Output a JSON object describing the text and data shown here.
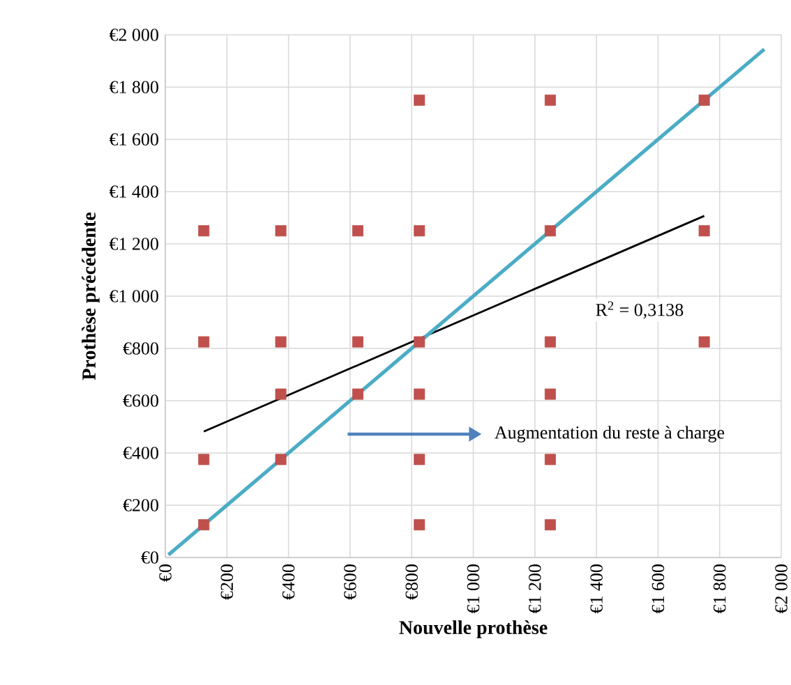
{
  "chart_data": {
    "type": "scatter",
    "xlabel": "Nouvelle prothèse",
    "ylabel": "Prothèse précédente",
    "xlim": [
      0,
      2000
    ],
    "ylim": [
      0,
      2000
    ],
    "xticks": [
      {
        "value": 0,
        "label": "€0"
      },
      {
        "value": 200,
        "label": "€200"
      },
      {
        "value": 400,
        "label": "€400"
      },
      {
        "value": 600,
        "label": "€600"
      },
      {
        "value": 800,
        "label": "€800"
      },
      {
        "value": 1000,
        "label": "€1 000"
      },
      {
        "value": 1200,
        "label": "€1 200"
      },
      {
        "value": 1400,
        "label": "€1 400"
      },
      {
        "value": 1600,
        "label": "€1 600"
      },
      {
        "value": 1800,
        "label": "€1 800"
      },
      {
        "value": 2000,
        "label": "€2 000"
      }
    ],
    "yticks": [
      {
        "value": 0,
        "label": "€0"
      },
      {
        "value": 200,
        "label": "€200"
      },
      {
        "value": 400,
        "label": "€400"
      },
      {
        "value": 600,
        "label": "€600"
      },
      {
        "value": 800,
        "label": "€800"
      },
      {
        "value": 1000,
        "label": "€1 000"
      },
      {
        "value": 1200,
        "label": "€1 200"
      },
      {
        "value": 1400,
        "label": "€1 400"
      },
      {
        "value": 1600,
        "label": "€1 600"
      },
      {
        "value": 1800,
        "label": "€1 800"
      },
      {
        "value": 2000,
        "label": "€2 000"
      }
    ],
    "grid": true,
    "marker": "square",
    "series": [
      {
        "color": "#c0504d",
        "x": [
          125,
          125,
          125,
          125,
          375,
          375,
          375,
          375,
          625,
          625,
          625,
          825,
          825,
          825,
          825,
          825,
          825,
          1250,
          1250,
          1250,
          1250,
          1250,
          1250,
          1750,
          1750,
          1750
        ],
        "values": [
          1250,
          825,
          375,
          125,
          1250,
          825,
          625,
          375,
          1250,
          825,
          625,
          1750,
          1250,
          825,
          625,
          375,
          125,
          1750,
          1250,
          825,
          625,
          375,
          125,
          1750,
          1250,
          825
        ]
      },
      {
        "type": "line",
        "color": "#000000",
        "marker": "none",
        "x": [
          125,
          1750
        ],
        "values": [
          482,
          1307
        ]
      },
      {
        "type": "line",
        "color": "#4bacc6",
        "marker": "none",
        "x": [
          10,
          1945
        ],
        "values": [
          10,
          1945
        ]
      }
    ],
    "annotations": [
      "R$^{2}$ = 0,3138",
      "Augmentation du reste à charge"
    ]
  }
}
